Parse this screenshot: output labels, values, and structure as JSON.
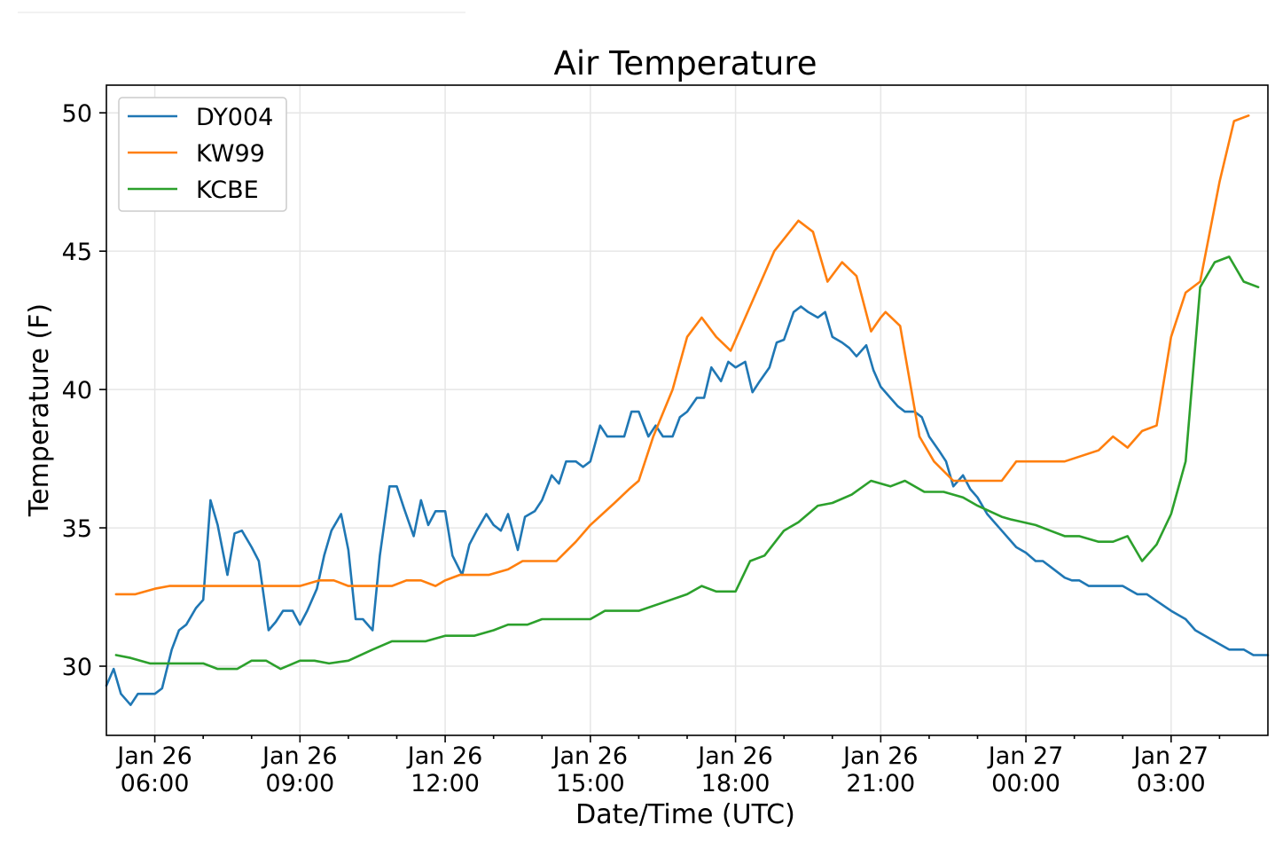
{
  "chart_data": {
    "type": "line",
    "title": "Air Temperature",
    "xlabel": "Date/Time (UTC)",
    "ylabel": "Temperature (F)",
    "x_unit": "hours since Jan 26 00:00 UTC",
    "xlim": [
      5.0,
      29.0
    ],
    "ylim": [
      27.5,
      51.0
    ],
    "grid": true,
    "legend_position": "top-left",
    "yticks": [
      30,
      35,
      40,
      45,
      50
    ],
    "xticks": [
      {
        "value": 6,
        "date": "Jan 26",
        "time": "06:00"
      },
      {
        "value": 9,
        "date": "Jan 26",
        "time": "09:00"
      },
      {
        "value": 12,
        "date": "Jan 26",
        "time": "12:00"
      },
      {
        "value": 15,
        "date": "Jan 26",
        "time": "15:00"
      },
      {
        "value": 18,
        "date": "Jan 26",
        "time": "18:00"
      },
      {
        "value": 21,
        "date": "Jan 26",
        "time": "21:00"
      },
      {
        "value": 24,
        "date": "Jan 27",
        "time": "00:00"
      },
      {
        "value": 27,
        "date": "Jan 27",
        "time": "03:00"
      }
    ],
    "minor_xticks": [
      7,
      8,
      10,
      11,
      13,
      14,
      16,
      17,
      19,
      20,
      22,
      23,
      25,
      26,
      28
    ],
    "series": [
      {
        "name": "DY004",
        "color": "#1f77b4",
        "points": [
          [
            5.0,
            29.3
          ],
          [
            5.15,
            29.9
          ],
          [
            5.3,
            29.0
          ],
          [
            5.5,
            28.6
          ],
          [
            5.65,
            29.0
          ],
          [
            6.0,
            29.0
          ],
          [
            6.15,
            29.2
          ],
          [
            6.35,
            30.6
          ],
          [
            6.5,
            31.3
          ],
          [
            6.65,
            31.5
          ],
          [
            6.85,
            32.1
          ],
          [
            7.0,
            32.4
          ],
          [
            7.15,
            36.0
          ],
          [
            7.3,
            35.1
          ],
          [
            7.5,
            33.3
          ],
          [
            7.65,
            34.8
          ],
          [
            7.8,
            34.9
          ],
          [
            8.0,
            34.3
          ],
          [
            8.15,
            33.8
          ],
          [
            8.35,
            31.3
          ],
          [
            8.5,
            31.6
          ],
          [
            8.65,
            32.0
          ],
          [
            8.85,
            32.0
          ],
          [
            9.0,
            31.5
          ],
          [
            9.15,
            32.0
          ],
          [
            9.35,
            32.8
          ],
          [
            9.5,
            34.0
          ],
          [
            9.65,
            34.9
          ],
          [
            9.85,
            35.5
          ],
          [
            10.0,
            34.2
          ],
          [
            10.15,
            31.7
          ],
          [
            10.3,
            31.7
          ],
          [
            10.5,
            31.3
          ],
          [
            10.65,
            34.0
          ],
          [
            10.85,
            36.5
          ],
          [
            11.0,
            36.5
          ],
          [
            11.15,
            35.7
          ],
          [
            11.35,
            34.7
          ],
          [
            11.5,
            36.0
          ],
          [
            11.65,
            35.1
          ],
          [
            11.8,
            35.6
          ],
          [
            12.0,
            35.6
          ],
          [
            12.15,
            34.0
          ],
          [
            12.35,
            33.3
          ],
          [
            12.5,
            34.4
          ],
          [
            12.65,
            34.9
          ],
          [
            12.85,
            35.5
          ],
          [
            13.0,
            35.1
          ],
          [
            13.15,
            34.9
          ],
          [
            13.3,
            35.5
          ],
          [
            13.5,
            34.2
          ],
          [
            13.65,
            35.4
          ],
          [
            13.85,
            35.6
          ],
          [
            14.0,
            36.0
          ],
          [
            14.2,
            36.9
          ],
          [
            14.35,
            36.6
          ],
          [
            14.5,
            37.4
          ],
          [
            14.7,
            37.4
          ],
          [
            14.85,
            37.2
          ],
          [
            15.0,
            37.4
          ],
          [
            15.2,
            38.7
          ],
          [
            15.35,
            38.3
          ],
          [
            15.5,
            38.3
          ],
          [
            15.7,
            38.3
          ],
          [
            15.85,
            39.2
          ],
          [
            16.0,
            39.2
          ],
          [
            16.2,
            38.3
          ],
          [
            16.35,
            38.7
          ],
          [
            16.5,
            38.3
          ],
          [
            16.7,
            38.3
          ],
          [
            16.85,
            39.0
          ],
          [
            17.0,
            39.2
          ],
          [
            17.2,
            39.7
          ],
          [
            17.35,
            39.7
          ],
          [
            17.5,
            40.8
          ],
          [
            17.7,
            40.3
          ],
          [
            17.85,
            41.0
          ],
          [
            18.0,
            40.8
          ],
          [
            18.2,
            41.0
          ],
          [
            18.35,
            39.9
          ],
          [
            18.5,
            40.3
          ],
          [
            18.7,
            40.8
          ],
          [
            18.85,
            41.7
          ],
          [
            19.0,
            41.8
          ],
          [
            19.2,
            42.8
          ],
          [
            19.35,
            43.0
          ],
          [
            19.5,
            42.8
          ],
          [
            19.7,
            42.6
          ],
          [
            19.85,
            42.8
          ],
          [
            20.0,
            41.9
          ],
          [
            20.2,
            41.7
          ],
          [
            20.35,
            41.5
          ],
          [
            20.5,
            41.2
          ],
          [
            20.7,
            41.6
          ],
          [
            20.85,
            40.7
          ],
          [
            21.0,
            40.1
          ],
          [
            21.2,
            39.7
          ],
          [
            21.35,
            39.4
          ],
          [
            21.5,
            39.2
          ],
          [
            21.7,
            39.2
          ],
          [
            21.85,
            39.0
          ],
          [
            22.0,
            38.3
          ],
          [
            22.2,
            37.8
          ],
          [
            22.35,
            37.4
          ],
          [
            22.5,
            36.5
          ],
          [
            22.7,
            36.9
          ],
          [
            22.85,
            36.4
          ],
          [
            23.0,
            36.1
          ],
          [
            23.2,
            35.5
          ],
          [
            23.5,
            34.9
          ],
          [
            23.8,
            34.3
          ],
          [
            24.0,
            34.1
          ],
          [
            24.2,
            33.8
          ],
          [
            24.35,
            33.8
          ],
          [
            24.5,
            33.6
          ],
          [
            24.8,
            33.2
          ],
          [
            24.95,
            33.1
          ],
          [
            25.1,
            33.1
          ],
          [
            25.3,
            32.9
          ],
          [
            25.5,
            32.9
          ],
          [
            26.0,
            32.9
          ],
          [
            26.3,
            32.6
          ],
          [
            26.5,
            32.6
          ],
          [
            27.0,
            32.0
          ],
          [
            27.3,
            31.7
          ],
          [
            27.5,
            31.3
          ],
          [
            28.0,
            30.8
          ],
          [
            28.2,
            30.6
          ],
          [
            28.5,
            30.6
          ],
          [
            28.7,
            30.4
          ],
          [
            29.0,
            30.4
          ]
        ]
      },
      {
        "name": "KW99",
        "color": "#ff7f0e",
        "points": [
          [
            5.2,
            32.6
          ],
          [
            5.6,
            32.6
          ],
          [
            6.0,
            32.8
          ],
          [
            6.3,
            32.9
          ],
          [
            7.0,
            32.9
          ],
          [
            8.0,
            32.9
          ],
          [
            9.0,
            32.9
          ],
          [
            9.4,
            33.1
          ],
          [
            9.7,
            33.1
          ],
          [
            10.0,
            32.9
          ],
          [
            10.9,
            32.9
          ],
          [
            11.2,
            33.1
          ],
          [
            11.5,
            33.1
          ],
          [
            11.8,
            32.9
          ],
          [
            12.0,
            33.1
          ],
          [
            12.3,
            33.3
          ],
          [
            12.9,
            33.3
          ],
          [
            13.3,
            33.5
          ],
          [
            13.6,
            33.8
          ],
          [
            14.3,
            33.8
          ],
          [
            14.7,
            34.5
          ],
          [
            15.0,
            35.1
          ],
          [
            15.5,
            35.9
          ],
          [
            15.8,
            36.4
          ],
          [
            16.0,
            36.7
          ],
          [
            16.3,
            38.3
          ],
          [
            16.7,
            40.0
          ],
          [
            17.0,
            41.9
          ],
          [
            17.3,
            42.6
          ],
          [
            17.6,
            41.9
          ],
          [
            17.9,
            41.4
          ],
          [
            18.2,
            42.6
          ],
          [
            18.5,
            43.8
          ],
          [
            18.8,
            45.0
          ],
          [
            19.3,
            46.1
          ],
          [
            19.6,
            45.7
          ],
          [
            19.9,
            43.9
          ],
          [
            20.2,
            44.6
          ],
          [
            20.5,
            44.1
          ],
          [
            20.8,
            42.1
          ],
          [
            21.0,
            42.6
          ],
          [
            21.1,
            42.8
          ],
          [
            21.4,
            42.3
          ],
          [
            21.8,
            38.3
          ],
          [
            22.1,
            37.4
          ],
          [
            22.5,
            36.7
          ],
          [
            23.5,
            36.7
          ],
          [
            23.8,
            37.4
          ],
          [
            24.5,
            37.4
          ],
          [
            24.8,
            37.4
          ],
          [
            25.5,
            37.8
          ],
          [
            25.8,
            38.3
          ],
          [
            26.1,
            37.9
          ],
          [
            26.4,
            38.5
          ],
          [
            26.7,
            38.7
          ],
          [
            27.0,
            41.9
          ],
          [
            27.3,
            43.5
          ],
          [
            27.6,
            43.9
          ],
          [
            28.0,
            47.5
          ],
          [
            28.3,
            49.7
          ],
          [
            28.6,
            49.9
          ]
        ]
      },
      {
        "name": "KCBE",
        "color": "#2ca02c",
        "points": [
          [
            5.2,
            30.4
          ],
          [
            5.5,
            30.3
          ],
          [
            5.9,
            30.1
          ],
          [
            6.5,
            30.1
          ],
          [
            7.0,
            30.1
          ],
          [
            7.3,
            29.9
          ],
          [
            7.7,
            29.9
          ],
          [
            8.0,
            30.2
          ],
          [
            8.3,
            30.2
          ],
          [
            8.6,
            29.9
          ],
          [
            9.0,
            30.2
          ],
          [
            9.3,
            30.2
          ],
          [
            9.6,
            30.1
          ],
          [
            10.0,
            30.2
          ],
          [
            10.5,
            30.6
          ],
          [
            10.9,
            30.9
          ],
          [
            11.6,
            30.9
          ],
          [
            12.0,
            31.1
          ],
          [
            12.3,
            31.1
          ],
          [
            12.6,
            31.1
          ],
          [
            13.0,
            31.3
          ],
          [
            13.3,
            31.5
          ],
          [
            13.7,
            31.5
          ],
          [
            14.0,
            31.7
          ],
          [
            14.5,
            31.7
          ],
          [
            15.0,
            31.7
          ],
          [
            15.3,
            32.0
          ],
          [
            15.7,
            32.0
          ],
          [
            16.0,
            32.0
          ],
          [
            16.5,
            32.3
          ],
          [
            17.0,
            32.6
          ],
          [
            17.3,
            32.9
          ],
          [
            17.6,
            32.7
          ],
          [
            18.0,
            32.7
          ],
          [
            18.3,
            33.8
          ],
          [
            18.6,
            34.0
          ],
          [
            19.0,
            34.9
          ],
          [
            19.3,
            35.2
          ],
          [
            19.7,
            35.8
          ],
          [
            20.0,
            35.9
          ],
          [
            20.4,
            36.2
          ],
          [
            20.8,
            36.7
          ],
          [
            21.2,
            36.5
          ],
          [
            21.5,
            36.7
          ],
          [
            21.9,
            36.3
          ],
          [
            22.3,
            36.3
          ],
          [
            22.7,
            36.1
          ],
          [
            23.0,
            35.8
          ],
          [
            23.5,
            35.4
          ],
          [
            23.7,
            35.3
          ],
          [
            24.2,
            35.1
          ],
          [
            24.5,
            34.9
          ],
          [
            24.8,
            34.7
          ],
          [
            25.1,
            34.7
          ],
          [
            25.5,
            34.5
          ],
          [
            25.8,
            34.5
          ],
          [
            26.1,
            34.7
          ],
          [
            26.4,
            33.8
          ],
          [
            26.7,
            34.4
          ],
          [
            27.0,
            35.5
          ],
          [
            27.3,
            37.4
          ],
          [
            27.6,
            43.7
          ],
          [
            27.9,
            44.6
          ],
          [
            28.2,
            44.8
          ],
          [
            28.5,
            43.9
          ],
          [
            28.8,
            43.7
          ]
        ]
      }
    ]
  }
}
